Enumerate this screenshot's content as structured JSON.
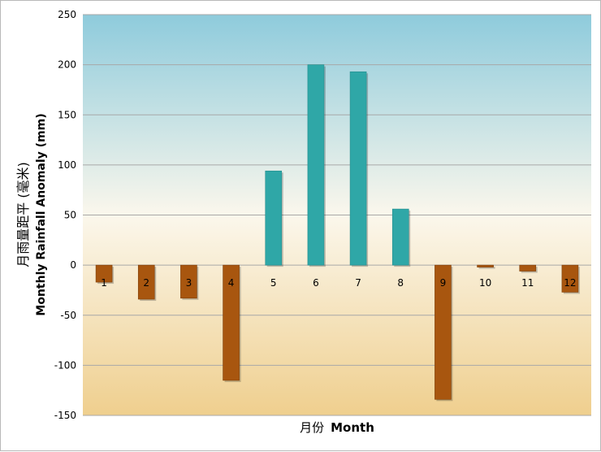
{
  "chart_data": {
    "type": "bar",
    "categories": [
      "1",
      "2",
      "3",
      "4",
      "5",
      "6",
      "7",
      "8",
      "9",
      "10",
      "11",
      "12"
    ],
    "values": [
      -17,
      -34,
      -33,
      -115,
      94,
      200,
      193,
      56,
      -134,
      -2,
      -6,
      -27
    ],
    "xlabel_zh": "月份",
    "xlabel_en": "Month",
    "ylabel_zh": "月雨量距平 (毫米)",
    "ylabel_en": "Monthly Rainfall Anomaly (mm)",
    "ylim": [
      -150,
      250
    ],
    "yticks": [
      250,
      200,
      150,
      100,
      50,
      0,
      -50,
      -100,
      -150
    ],
    "grid": true,
    "colors": {
      "positive": "#2fa7a7",
      "negative": "#a8560f",
      "bg_top": "#8ecbdc",
      "bg_mid": "#fbf7ec",
      "bg_bottom": "#efcf8e",
      "grid": "#a8a8a8"
    }
  }
}
